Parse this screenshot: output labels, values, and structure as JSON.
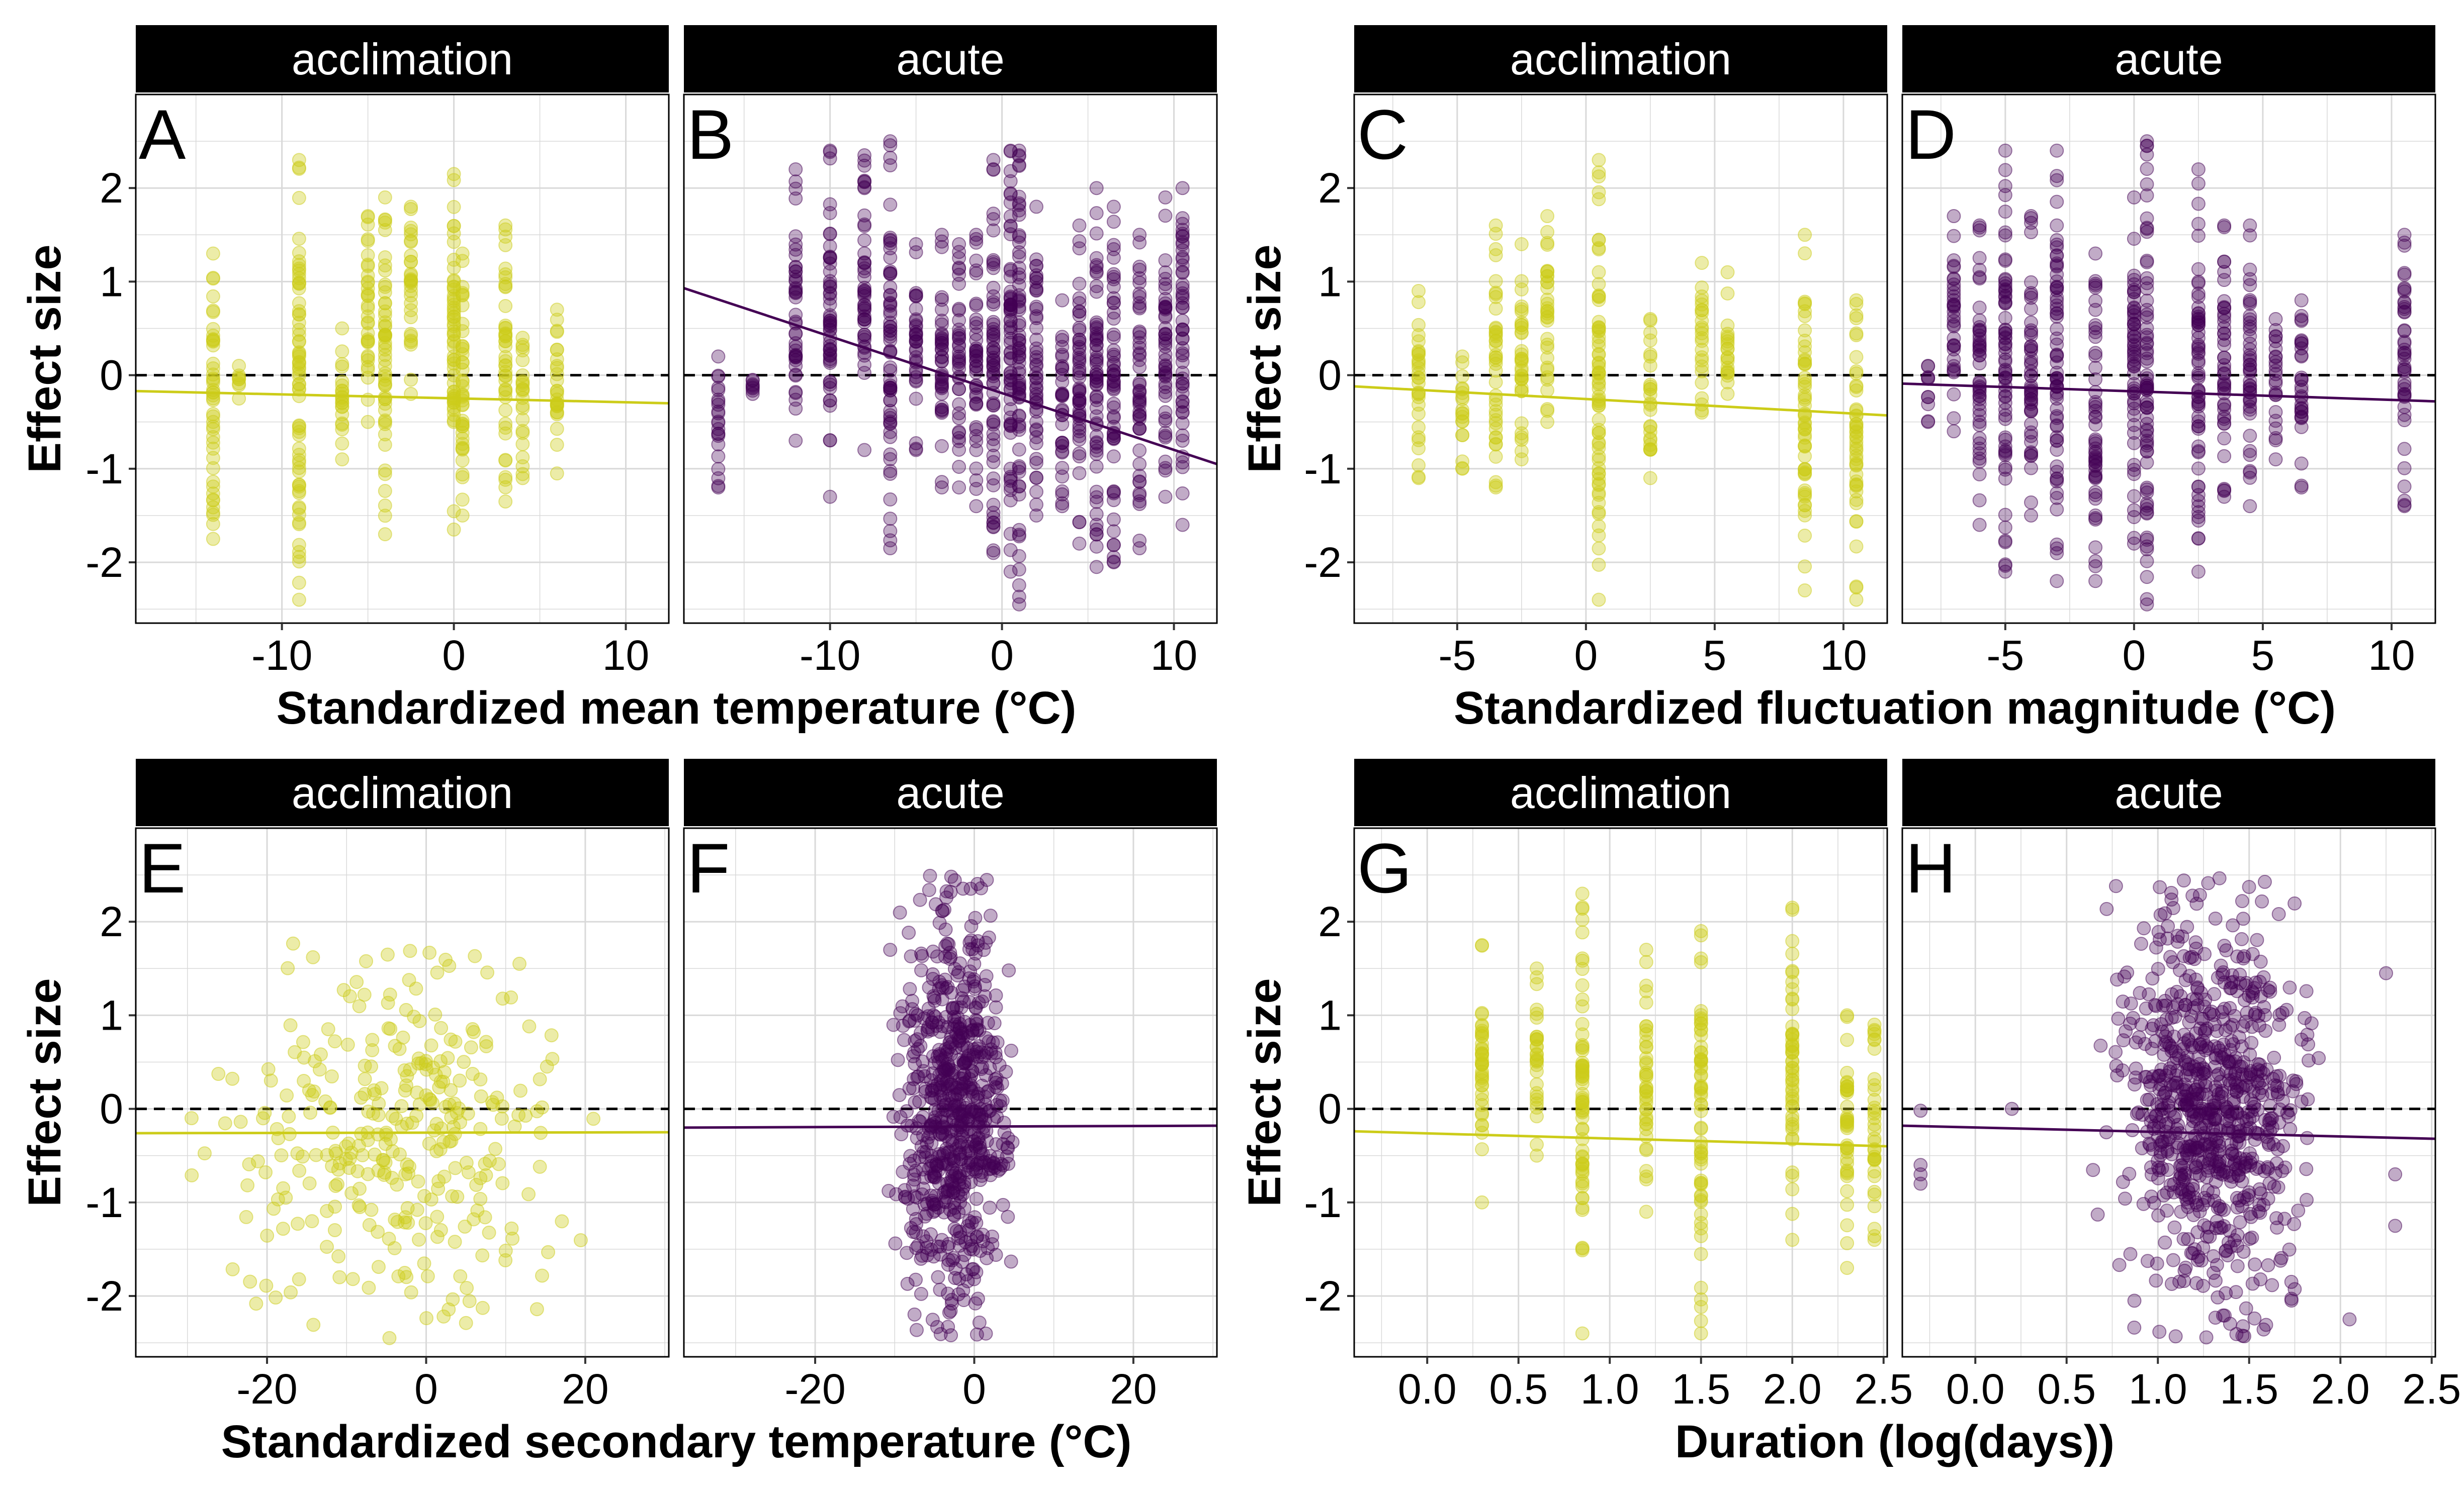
{
  "colors": {
    "acclimation": "#cccc19",
    "acute": "#440154",
    "strip_bg": "#000000",
    "strip_text": "#ffffff",
    "grid": "#d9d9d9"
  },
  "chart_data": [
    {
      "type": "scatter",
      "group": "temperature",
      "xlabel": "Standardized mean temperature (°C)",
      "ylabel": "Effect size",
      "ylim": [
        -2.65,
        3.0
      ],
      "y_ticks": [
        2,
        1,
        0,
        -1,
        -2
      ],
      "x_ticks": [
        -10,
        0,
        10
      ],
      "panels": [
        {
          "letter": "A",
          "facet": "acclimation",
          "xlim": [
            -18.5,
            12.5
          ],
          "columns": [
            [
              -14,
              -1.75,
              1.3
            ],
            [
              -12.5,
              -0.25,
              0.1
            ],
            [
              -9,
              -2.4,
              2.3
            ],
            [
              -6.5,
              -0.9,
              0.5
            ],
            [
              -5,
              -0.5,
              1.7
            ],
            [
              -4,
              -1.7,
              1.9
            ],
            [
              -2.5,
              -0.2,
              1.8
            ],
            [
              0,
              -1.65,
              2.15
            ],
            [
              0.5,
              -1.5,
              1.3
            ],
            [
              3,
              -1.35,
              1.6
            ],
            [
              4,
              -1.1,
              0.4
            ],
            [
              6,
              -1.05,
              0.7
            ]
          ],
          "fit": [
            [
              -18.5,
              -0.17
            ],
            [
              12.5,
              -0.3
            ]
          ]
        },
        {
          "letter": "B",
          "facet": "acute",
          "xlim": [
            -18.5,
            12.5
          ],
          "columns": [
            [
              -16.5,
              -1.2,
              0.2
            ],
            [
              -14.5,
              -0.2,
              -0.05
            ],
            [
              -12,
              -0.7,
              2.2
            ],
            [
              -10,
              -1.3,
              2.4
            ],
            [
              -8,
              -0.8,
              2.35
            ],
            [
              -6.5,
              -1.85,
              2.5
            ],
            [
              -5,
              -0.8,
              1.4
            ],
            [
              -3.5,
              -1.2,
              1.5
            ],
            [
              -2.5,
              -1.2,
              1.4
            ],
            [
              -1.5,
              -1.4,
              1.5
            ],
            [
              -0.5,
              -1.9,
              2.3
            ],
            [
              0.5,
              -2.1,
              2.4
            ],
            [
              1,
              -2.45,
              2.4
            ],
            [
              2,
              -1.5,
              1.8
            ],
            [
              3.5,
              -1.4,
              0.8
            ],
            [
              4.5,
              -1.8,
              1.6
            ],
            [
              5.5,
              -2.05,
              2.0
            ],
            [
              6.5,
              -2.0,
              1.8
            ],
            [
              8,
              -1.85,
              1.5
            ],
            [
              9.5,
              -1.3,
              1.9
            ],
            [
              10.5,
              -1.6,
              2.0
            ]
          ],
          "fit": [
            [
              -18.5,
              0.93
            ],
            [
              12.5,
              -0.95
            ]
          ]
        }
      ]
    },
    {
      "type": "scatter",
      "group": "fluctuation",
      "xlabel": "Standardized fluctuation magnitude (°C)",
      "ylabel": "Effect size",
      "ylim": [
        -2.65,
        3.0
      ],
      "y_ticks": [
        2,
        1,
        0,
        -1,
        -2
      ],
      "x_ticks": [
        -5,
        0,
        5,
        10
      ],
      "panels": [
        {
          "letter": "C",
          "facet": "acclimation",
          "xlim": [
            -9.0,
            11.7
          ],
          "columns": [
            [
              -6.5,
              -1.1,
              0.9
            ],
            [
              -4.8,
              -1.0,
              0.2
            ],
            [
              -3.5,
              -1.2,
              1.6
            ],
            [
              -2.5,
              -0.9,
              1.4
            ],
            [
              -1.5,
              -0.5,
              1.7
            ],
            [
              0.5,
              -2.4,
              2.3
            ],
            [
              2.5,
              -1.1,
              0.6
            ],
            [
              4.5,
              -0.4,
              1.2
            ],
            [
              5.5,
              -0.2,
              1.1
            ],
            [
              8.5,
              -2.3,
              1.5
            ],
            [
              10.5,
              -2.4,
              0.8
            ]
          ],
          "fit": [
            [
              -9.0,
              -0.12
            ],
            [
              11.7,
              -0.43
            ]
          ]
        },
        {
          "letter": "D",
          "facet": "acute",
          "xlim": [
            -9.0,
            11.7
          ],
          "columns": [
            [
              -8,
              -0.5,
              0.1
            ],
            [
              -7,
              -0.6,
              1.7
            ],
            [
              -6,
              -1.6,
              1.6
            ],
            [
              -5,
              -2.1,
              2.4
            ],
            [
              -4,
              -1.5,
              1.7
            ],
            [
              -3,
              -2.2,
              2.4
            ],
            [
              -1.5,
              -2.2,
              1.3
            ],
            [
              0,
              -1.8,
              1.9
            ],
            [
              0.5,
              -2.45,
              2.5
            ],
            [
              2.5,
              -2.1,
              2.2
            ],
            [
              3.5,
              -1.3,
              1.6
            ],
            [
              4.5,
              -1.4,
              1.6
            ],
            [
              5.5,
              -0.9,
              0.6
            ],
            [
              6.5,
              -1.2,
              0.8
            ],
            [
              10.5,
              -1.4,
              1.5
            ]
          ],
          "fit": [
            [
              -9.0,
              -0.09
            ],
            [
              11.7,
              -0.28
            ]
          ]
        }
      ]
    },
    {
      "type": "scatter",
      "group": "secondary",
      "xlabel": "Standardized secondary temperature (°C)",
      "ylabel": "Effect size",
      "ylim": [
        -2.65,
        3.0
      ],
      "y_ticks": [
        2,
        1,
        0,
        -1,
        -2
      ],
      "x_ticks": [
        -20,
        0,
        20
      ],
      "panels": [
        {
          "letter": "E",
          "facet": "acclimation",
          "xlim": [
            -36.5,
            30.5
          ],
          "scatter_cloud": {
            "x": [
              -33,
              28
            ],
            "y": [
              -2.45,
              1.9
            ],
            "count": 320
          },
          "fit": [
            [
              -36.5,
              -0.26
            ],
            [
              30.5,
              -0.25
            ]
          ]
        },
        {
          "letter": "F",
          "facet": "acute",
          "xlim": [
            -36.5,
            30.5
          ],
          "scatter_cloud": {
            "x": [
              -12,
              7
            ],
            "y": [
              -2.45,
              2.5
            ],
            "count": 700
          },
          "fit": [
            [
              -36.5,
              -0.2
            ],
            [
              30.5,
              -0.18
            ]
          ]
        }
      ]
    },
    {
      "type": "scatter",
      "group": "duration",
      "xlabel": "Duration (log(days))",
      "ylabel": "Effect size",
      "ylim": [
        -2.65,
        3.0
      ],
      "y_ticks": [
        2,
        1,
        0,
        -1,
        -2
      ],
      "x_ticks": [
        "0.0",
        "0.5",
        "1.0",
        "1.5",
        "2.0",
        "2.5"
      ],
      "panels": [
        {
          "letter": "G",
          "facet": "acclimation",
          "xlim": [
            -0.4,
            2.52
          ],
          "columns": [
            [
              0.3,
              -1.0,
              1.75
            ],
            [
              0.6,
              -0.5,
              1.5
            ],
            [
              0.85,
              -2.4,
              2.3
            ],
            [
              1.2,
              -1.1,
              1.7
            ],
            [
              1.5,
              -2.4,
              1.9
            ],
            [
              2.0,
              -1.4,
              2.15
            ],
            [
              2.3,
              -1.7,
              1.0
            ],
            [
              2.45,
              -1.4,
              0.9
            ]
          ],
          "fit": [
            [
              -0.4,
              -0.24
            ],
            [
              2.52,
              -0.4
            ]
          ]
        },
        {
          "letter": "H",
          "facet": "acute",
          "xlim": [
            -0.4,
            2.52
          ],
          "scatter_cloud": {
            "x": [
              0.6,
              2.0
            ],
            "y": [
              -2.45,
              2.5
            ],
            "count": 800
          },
          "extra_points": [
            [
              -0.3,
              -0.7
            ],
            [
              -0.3,
              -0.8
            ],
            [
              -0.3,
              -0.6
            ],
            [
              -0.3,
              -0.02
            ],
            [
              0.2,
              0.0
            ],
            [
              2.25,
              1.45
            ],
            [
              2.3,
              -0.7
            ],
            [
              2.3,
              -1.25
            ],
            [
              2.05,
              -2.25
            ]
          ],
          "fit": [
            [
              -0.4,
              -0.18
            ],
            [
              2.52,
              -0.32
            ]
          ]
        }
      ]
    }
  ]
}
